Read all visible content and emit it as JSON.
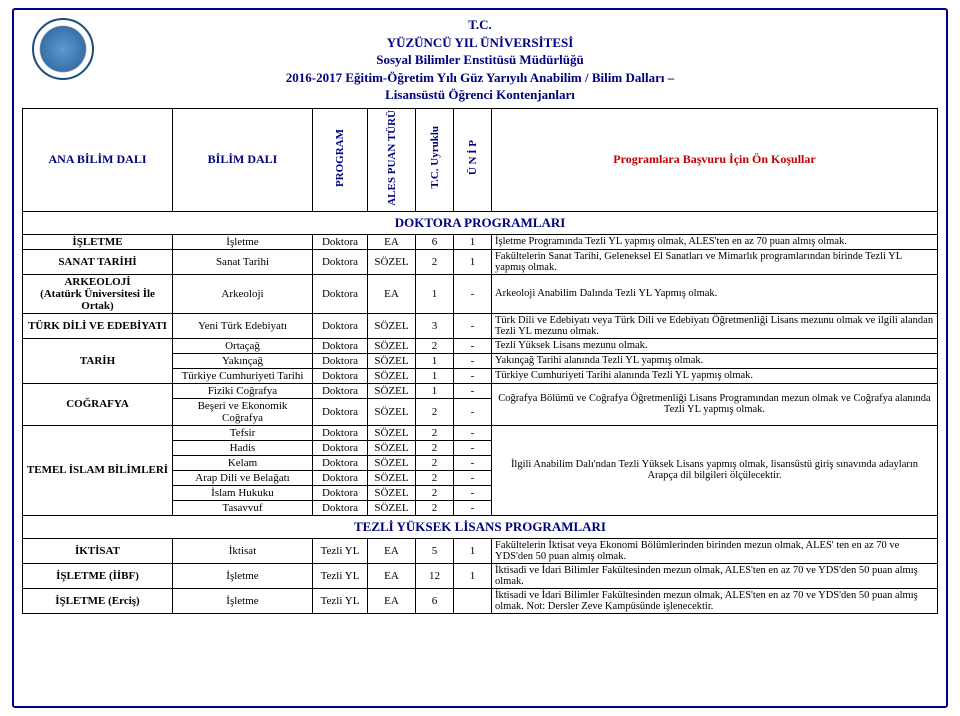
{
  "header": {
    "l1": "T.C.",
    "l2": "YÜZÜNCÜ YIL ÜNİVERSİTESİ",
    "l3": "Sosyal Bilimler Enstitüsü Müdürlüğü",
    "l4": "2016-2017 Eğitim-Öğretim Yılı Güz Yarıyılı Anabilim / Bilim Dalları –",
    "l5": "Lisansüstü Öğrenci Kontenjanları"
  },
  "cols": {
    "ana": "ANA BİLİM DALI",
    "bilim": "BİLİM DALI",
    "program": "PROGRAM",
    "ales": "ALES PUAN TÜRÜ",
    "tc": "T.C. Uyruklu",
    "unip": "Ü N İ P",
    "prereq": "Programlara Başvuru İçin Ön Koşullar"
  },
  "sections": {
    "doktora": "DOKTORA PROGRAMLARI",
    "tezli": "TEZLİ YÜKSEK LİSANS PROGRAMLARI"
  },
  "rows": [
    {
      "ana": "İŞLETME",
      "bilim": "İşletme",
      "prog": "Doktora",
      "ales": "EA",
      "tc": "6",
      "unip": "1",
      "pre": "İşletme Programında Tezli YL yapmış olmak,  ALES'ten en az 70 puan almış olmak."
    },
    {
      "ana": "SANAT TARİHİ",
      "bilim": "Sanat Tarihi",
      "prog": "Doktora",
      "ales": "SÖZEL",
      "tc": "2",
      "unip": "1",
      "pre": "Fakültelerin Sanat Tarihi, Geleneksel El Sanatları ve Mimarlık programlarından birinde Tezli YL yapmış olmak."
    },
    {
      "ana": "ARKEOLOJİ\n(Atatürk Üniversitesi İle Ortak)",
      "bilim": "Arkeoloji",
      "prog": "Doktora",
      "ales": "EA",
      "tc": "1",
      "unip": "-",
      "pre": "Arkeoloji Anabilim Dalında Tezli YL Yapmış olmak."
    },
    {
      "ana": "TÜRK DİLİ VE EDEBİYATI",
      "bilim": "Yeni Türk Edebiyatı",
      "prog": "Doktora",
      "ales": "SÖZEL",
      "tc": "3",
      "unip": "-",
      "pre": "Türk Dili ve Edebiyatı veya Türk Dili ve Edebiyatı Öğretmenliği Lisans mezunu olmak ve ilgili alandan Tezli YL mezunu olmak."
    },
    {
      "ana": "TARİH",
      "rowspan": 3,
      "bilim": "Ortaçağ",
      "prog": "Doktora",
      "ales": "SÖZEL",
      "tc": "2",
      "unip": "-",
      "pre": "Tezli Yüksek Lisans mezunu olmak."
    },
    {
      "bilim": "Yakınçağ",
      "prog": "Doktora",
      "ales": "SÖZEL",
      "tc": "1",
      "unip": "-",
      "pre": "Yakınçağ Tarihi alanında Tezli YL yapmış olmak."
    },
    {
      "bilim": "Türkiye Cumhuriyeti Tarihi",
      "prog": "Doktora",
      "ales": "SÖZEL",
      "tc": "1",
      "unip": "-",
      "pre": "Türkiye Cumhuriyeti Tarihi alanında Tezli YL yapmış olmak."
    },
    {
      "ana": "COĞRAFYA",
      "rowspan": 2,
      "bilim": "Fiziki Coğrafya",
      "prog": "Doktora",
      "ales": "SÖZEL",
      "tc": "1",
      "unip": "-",
      "pre": "Coğrafya Bölümü ve Coğrafya Öğretmenliği Lisans Programından mezun olmak ve Coğrafya alanında Tezli YL yapmış olmak.",
      "prespan": 2
    },
    {
      "bilim": "Beşeri ve Ekonomik Coğrafya",
      "prog": "Doktora",
      "ales": "SÖZEL",
      "tc": "2",
      "unip": "-"
    },
    {
      "ana": "TEMEL İSLAM BİLİMLERİ",
      "rowspan": 6,
      "bilim": "Tefsir",
      "prog": "Doktora",
      "ales": "SÖZEL",
      "tc": "2",
      "unip": "-",
      "pre": "İlgili Anabilim Dalı'ndan Tezli Yüksek Lisans yapmış olmak, lisansüstü giriş sınavında adayların Arapça dil bilgileri ölçülecektir.",
      "prespan": 6
    },
    {
      "bilim": "Hadis",
      "prog": "Doktora",
      "ales": "SÖZEL",
      "tc": "2",
      "unip": "-"
    },
    {
      "bilim": "Kelam",
      "prog": "Doktora",
      "ales": "SÖZEL",
      "tc": "2",
      "unip": "-"
    },
    {
      "bilim": "Arap Dili ve Belağatı",
      "prog": "Doktora",
      "ales": "SÖZEL",
      "tc": "2",
      "unip": "-"
    },
    {
      "bilim": "İslam Hukuku",
      "prog": "Doktora",
      "ales": "SÖZEL",
      "tc": "2",
      "unip": "-"
    },
    {
      "bilim": "Tasavvuf",
      "prog": "Doktora",
      "ales": "SÖZEL",
      "tc": "2",
      "unip": "-"
    }
  ],
  "rows2": [
    {
      "ana": "İKTİSAT",
      "bilim": "İktisat",
      "prog": "Tezli YL",
      "ales": "EA",
      "tc": "5",
      "unip": "1",
      "pre": "Fakültelerin İktisat veya Ekonomi Bölümlerinden birinden mezun olmak, ALES' ten en az 70 ve YDS'den 50 puan almış olmak."
    },
    {
      "ana": "İŞLETME (İİBF)",
      "bilim": "İşletme",
      "prog": "Tezli YL",
      "ales": "EA",
      "tc": "12",
      "unip": "1",
      "pre": "İktisadi ve İdari Bilimler Fakültesinden mezun olmak, ALES'ten en az 70 ve YDS'den 50 puan almış olmak."
    },
    {
      "ana": "İŞLETME (Erciş)",
      "bilim": "İşletme",
      "prog": "Tezli YL",
      "ales": "EA",
      "tc": "6",
      "unip": "",
      "pre": "İktisadi ve İdari Bilimler Fakültesinden mezun olmak, ALES'ten en az 70 ve YDS'den 50 puan almış olmak. Not: Dersler Zeve Kampüsünde işlenecektir."
    }
  ],
  "style": {
    "border_color": "#000080",
    "accent_red": "#c00000",
    "font": "Times New Roman"
  }
}
